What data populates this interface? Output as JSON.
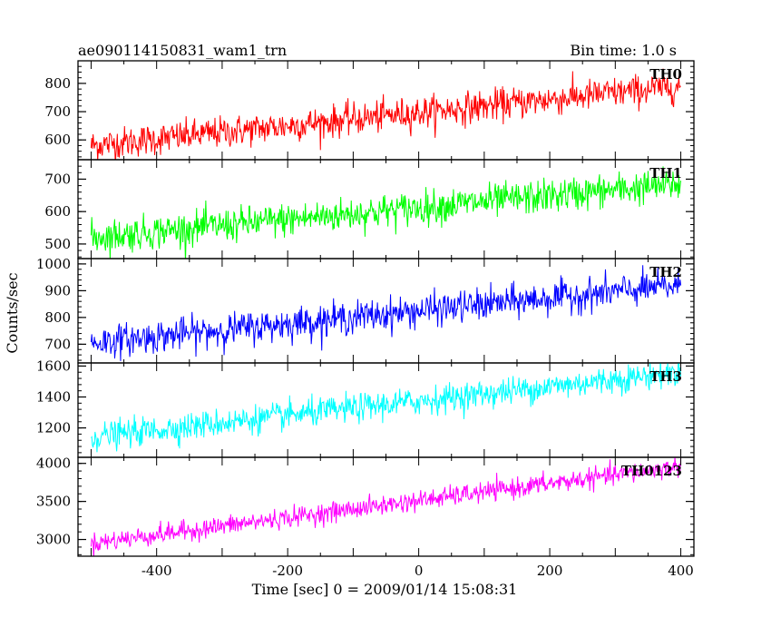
{
  "header": {
    "title": "ae090114150831_wam1_trn",
    "bin_time": "Bin time: 1.0 s"
  },
  "chart_data": {
    "type": "line",
    "xlabel": "Time [sec] 0 = 2009/01/14 15:08:31",
    "ylabel": "Counts/sec",
    "xlim": [
      -520,
      420
    ],
    "xticks": [
      -400,
      -200,
      0,
      200,
      400
    ],
    "x_start": -500,
    "x_end": 400,
    "bin_time_s": 1.0,
    "grid": false,
    "panels": [
      {
        "name": "TH0",
        "color": "#ff0000",
        "ylim": [
          530,
          880
        ],
        "yticks": [
          600,
          700,
          800
        ],
        "start_value": 580,
        "end_value": 790,
        "noise": 28
      },
      {
        "name": "TH1",
        "color": "#00ff00",
        "ylim": [
          455,
          760
        ],
        "yticks": [
          500,
          600,
          700
        ],
        "start_value": 520,
        "end_value": 685,
        "noise": 26
      },
      {
        "name": "TH2",
        "color": "#0000ff",
        "ylim": [
          630,
          1020
        ],
        "yticks": [
          700,
          800,
          900,
          1000
        ],
        "start_value": 705,
        "end_value": 920,
        "noise": 30
      },
      {
        "name": "TH3",
        "color": "#00ffff",
        "ylim": [
          1010,
          1620
        ],
        "yticks": [
          1200,
          1400,
          1600
        ],
        "start_value": 1140,
        "end_value": 1560,
        "noise": 45
      },
      {
        "name": "TH0123",
        "color": "#ff00ff",
        "ylim": [
          2780,
          4080
        ],
        "yticks": [
          3000,
          3500,
          4000
        ],
        "start_value": 2950,
        "end_value": 3960,
        "noise": 65
      }
    ]
  }
}
